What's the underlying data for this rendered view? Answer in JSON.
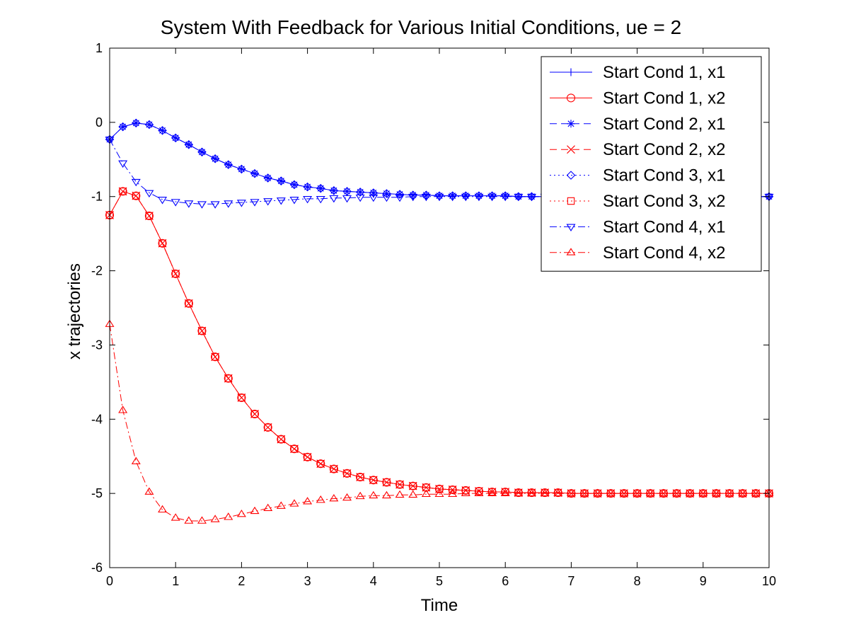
{
  "chart_data": {
    "type": "line",
    "title": "System With Feedback for Various Initial Conditions, ue = 2",
    "xlabel": "Time",
    "ylabel": "x trajectories",
    "xlim": [
      0,
      10
    ],
    "ylim": [
      -6,
      1
    ],
    "xticks": [
      "0",
      "1",
      "2",
      "3",
      "4",
      "5",
      "6",
      "7",
      "8",
      "9",
      "10"
    ],
    "yticks": [
      "1",
      "0",
      "-1",
      "-2",
      "-3",
      "-4",
      "-5",
      "-6"
    ],
    "grid": false,
    "legend_position": "top-right",
    "x": [
      0,
      0.2,
      0.4,
      0.6,
      0.8,
      1.0,
      1.2,
      1.4,
      1.6,
      1.8,
      2.0,
      2.2,
      2.4,
      2.6,
      2.8,
      3.0,
      3.2,
      3.4,
      3.6,
      3.8,
      4.0,
      4.2,
      4.4,
      4.6,
      4.8,
      5.0,
      5.2,
      5.4,
      5.6,
      5.8,
      6.0,
      6.2,
      6.4,
      6.6,
      6.8,
      7.0,
      7.2,
      7.4,
      7.6,
      7.8,
      8.0,
      8.2,
      8.4,
      8.6,
      8.8,
      9.0,
      9.2,
      9.4,
      9.6,
      9.8,
      10.0
    ],
    "series": [
      {
        "name": "Start Cond 1, x1",
        "color": "#0000ff",
        "dash": "solid",
        "marker": "plus",
        "values": [
          -0.23,
          -0.06,
          -0.01,
          -0.03,
          -0.11,
          -0.21,
          -0.3,
          -0.4,
          -0.49,
          -0.57,
          -0.63,
          -0.69,
          -0.75,
          -0.79,
          -0.84,
          -0.87,
          -0.89,
          -0.92,
          -0.93,
          -0.94,
          -0.95,
          -0.96,
          -0.97,
          -0.98,
          -0.98,
          -0.99,
          -0.99,
          -0.99,
          -0.99,
          -0.99,
          -0.99,
          -1.0,
          -1.0,
          -1.0,
          -1.0,
          -1.0,
          -1.0,
          -1.0,
          -1.0,
          -1.0,
          -1.0,
          -1.0,
          -1.0,
          -1.0,
          -1.0,
          -1.0,
          -1.0,
          -1.0,
          -1.0,
          -1.0,
          -1.0
        ]
      },
      {
        "name": "Start Cond 1, x2",
        "color": "#ff0000",
        "dash": "solid",
        "marker": "circle",
        "values": [
          -1.25,
          -0.93,
          -0.99,
          -1.26,
          -1.63,
          -2.04,
          -2.44,
          -2.81,
          -3.16,
          -3.45,
          -3.71,
          -3.93,
          -4.11,
          -4.27,
          -4.4,
          -4.51,
          -4.6,
          -4.67,
          -4.73,
          -4.78,
          -4.82,
          -4.85,
          -4.88,
          -4.9,
          -4.92,
          -4.94,
          -4.95,
          -4.96,
          -4.97,
          -4.98,
          -4.98,
          -4.99,
          -4.99,
          -4.99,
          -4.99,
          -5.0,
          -5.0,
          -5.0,
          -5.0,
          -5.0,
          -5.0,
          -5.0,
          -5.0,
          -5.0,
          -5.0,
          -5.0,
          -5.0,
          -5.0,
          -5.0,
          -5.0,
          -5.0
        ]
      },
      {
        "name": "Start Cond 2, x1",
        "color": "#0000ff",
        "dash": "dashed",
        "marker": "asterisk",
        "values": [
          -0.23,
          -0.06,
          -0.01,
          -0.03,
          -0.11,
          -0.21,
          -0.3,
          -0.4,
          -0.49,
          -0.57,
          -0.63,
          -0.69,
          -0.75,
          -0.79,
          -0.84,
          -0.87,
          -0.89,
          -0.92,
          -0.93,
          -0.94,
          -0.95,
          -0.96,
          -0.97,
          -0.98,
          -0.98,
          -0.99,
          -0.99,
          -0.99,
          -0.99,
          -0.99,
          -0.99,
          -1.0,
          -1.0,
          -1.0,
          -1.0,
          -1.0,
          -1.0,
          -1.0,
          -1.0,
          -1.0,
          -1.0,
          -1.0,
          -1.0,
          -1.0,
          -1.0,
          -1.0,
          -1.0,
          -1.0,
          -1.0,
          -1.0,
          -1.0
        ]
      },
      {
        "name": "Start Cond 2, x2",
        "color": "#ff0000",
        "dash": "dashed",
        "marker": "cross",
        "values": [
          -1.25,
          -0.93,
          -0.99,
          -1.26,
          -1.63,
          -2.04,
          -2.44,
          -2.81,
          -3.16,
          -3.45,
          -3.71,
          -3.93,
          -4.11,
          -4.27,
          -4.4,
          -4.51,
          -4.6,
          -4.67,
          -4.73,
          -4.78,
          -4.82,
          -4.85,
          -4.88,
          -4.9,
          -4.92,
          -4.94,
          -4.95,
          -4.96,
          -4.97,
          -4.98,
          -4.98,
          -4.99,
          -4.99,
          -4.99,
          -4.99,
          -5.0,
          -5.0,
          -5.0,
          -5.0,
          -5.0,
          -5.0,
          -5.0,
          -5.0,
          -5.0,
          -5.0,
          -5.0,
          -5.0,
          -5.0,
          -5.0,
          -5.0,
          -5.0
        ]
      },
      {
        "name": "Start Cond 3, x1",
        "color": "#0000ff",
        "dash": "dotted",
        "marker": "diamond",
        "values": [
          -0.23,
          -0.06,
          -0.01,
          -0.03,
          -0.11,
          -0.21,
          -0.3,
          -0.4,
          -0.49,
          -0.57,
          -0.63,
          -0.69,
          -0.75,
          -0.79,
          -0.84,
          -0.87,
          -0.89,
          -0.92,
          -0.93,
          -0.94,
          -0.95,
          -0.96,
          -0.97,
          -0.98,
          -0.98,
          -0.99,
          -0.99,
          -0.99,
          -0.99,
          -0.99,
          -0.99,
          -1.0,
          -1.0,
          -1.0,
          -1.0,
          -1.0,
          -1.0,
          -1.0,
          -1.0,
          -1.0,
          -1.0,
          -1.0,
          -1.0,
          -1.0,
          -1.0,
          -1.0,
          -1.0,
          -1.0,
          -1.0,
          -1.0,
          -1.0
        ]
      },
      {
        "name": "Start Cond 3, x2",
        "color": "#ff0000",
        "dash": "dotted",
        "marker": "square",
        "values": [
          -1.25,
          -0.93,
          -0.99,
          -1.26,
          -1.63,
          -2.04,
          -2.44,
          -2.81,
          -3.16,
          -3.45,
          -3.71,
          -3.93,
          -4.11,
          -4.27,
          -4.4,
          -4.51,
          -4.6,
          -4.67,
          -4.73,
          -4.78,
          -4.82,
          -4.85,
          -4.88,
          -4.9,
          -4.92,
          -4.94,
          -4.95,
          -4.96,
          -4.97,
          -4.98,
          -4.98,
          -4.99,
          -4.99,
          -4.99,
          -4.99,
          -5.0,
          -5.0,
          -5.0,
          -5.0,
          -5.0,
          -5.0,
          -5.0,
          -5.0,
          -5.0,
          -5.0,
          -5.0,
          -5.0,
          -5.0,
          -5.0,
          -5.0,
          -5.0
        ]
      },
      {
        "name": "Start Cond 4, x1",
        "color": "#0000ff",
        "dash": "dashdot",
        "marker": "triangle-down",
        "values": [
          -0.23,
          -0.55,
          -0.8,
          -0.95,
          -1.04,
          -1.07,
          -1.09,
          -1.1,
          -1.1,
          -1.09,
          -1.08,
          -1.07,
          -1.06,
          -1.05,
          -1.04,
          -1.03,
          -1.03,
          -1.02,
          -1.02,
          -1.01,
          -1.01,
          -1.01,
          -1.01,
          -1.0,
          -1.0,
          -1.0,
          -1.0,
          -1.0,
          -1.0,
          -1.0,
          -1.0,
          -1.0,
          -1.0,
          -1.0,
          -1.0,
          -1.0,
          -1.0,
          -1.0,
          -1.0,
          -1.0,
          -1.0,
          -1.0,
          -1.0,
          -1.0,
          -1.0,
          -1.0,
          -1.0,
          -1.0,
          -1.0,
          -1.0,
          -1.0
        ]
      },
      {
        "name": "Start Cond 4, x2",
        "color": "#ff0000",
        "dash": "dashdot",
        "marker": "triangle-up",
        "values": [
          -2.72,
          -3.88,
          -4.57,
          -4.98,
          -5.22,
          -5.33,
          -5.37,
          -5.37,
          -5.35,
          -5.32,
          -5.28,
          -5.24,
          -5.2,
          -5.17,
          -5.14,
          -5.11,
          -5.09,
          -5.07,
          -5.06,
          -5.04,
          -5.03,
          -5.03,
          -5.02,
          -5.02,
          -5.01,
          -5.01,
          -5.01,
          -5.0,
          -5.0,
          -5.0,
          -5.0,
          -5.0,
          -5.0,
          -5.0,
          -5.0,
          -5.0,
          -5.0,
          -5.0,
          -5.0,
          -5.0,
          -5.0,
          -5.0,
          -5.0,
          -5.0,
          -5.0,
          -5.0,
          -5.0,
          -5.0,
          -5.0,
          -5.0,
          -5.0
        ]
      }
    ]
  }
}
